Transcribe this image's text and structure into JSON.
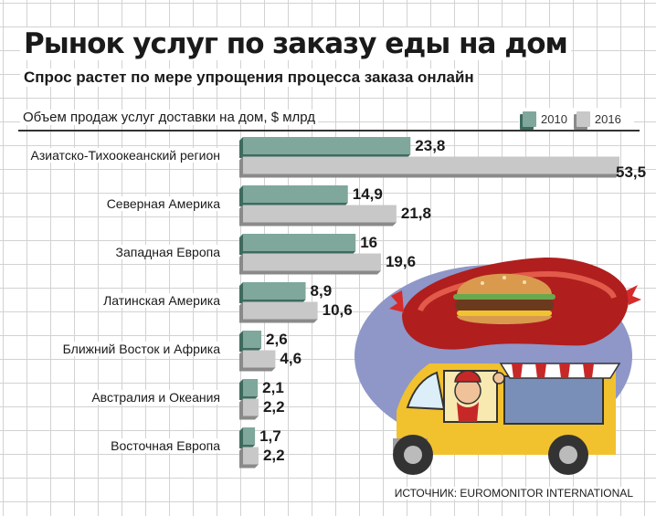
{
  "chart_data": {
    "type": "bar",
    "title": "Рынок услуг по заказу еды на дом",
    "subtitle": "Спрос растет по мере упрощения процесса заказа онлайн",
    "ylabel": "Объем продаж услуг доставки на дом, $ млрд",
    "categories": [
      "Азиатско-Тихоокеанский регион",
      "Северная Америка",
      "Западная Европа",
      "Латинская Америка",
      "Ближний Восток и Африка",
      "Австралия и Океания",
      "Восточная Европа"
    ],
    "series": [
      {
        "name": "2010",
        "values": [
          23.8,
          14.9,
          16,
          8.9,
          2.6,
          2.1,
          1.7
        ],
        "labels": [
          "23,8",
          "14,9",
          "16",
          "8,9",
          "2,6",
          "2,1",
          "1,7"
        ]
      },
      {
        "name": "2016",
        "values": [
          53.5,
          21.8,
          19.6,
          10.6,
          4.6,
          2.2,
          2.2
        ],
        "labels": [
          "53,5",
          "21,8",
          "19,6",
          "10,6",
          "4,6",
          "2,2",
          "2,2"
        ]
      }
    ],
    "xlim": [
      0,
      53.5
    ],
    "legend": "top-right",
    "grid": true,
    "orientation": "horizontal"
  },
  "colors": {
    "series_2010": "#7fa79b",
    "series_2016": "#c8c8c8"
  },
  "source": "ИСТОЧНИК: EUROMONITOR INTERNATIONAL",
  "illustration": {
    "icons": [
      "burger-icon",
      "sausage-icon",
      "food-truck-icon",
      "vendor-icon"
    ]
  }
}
